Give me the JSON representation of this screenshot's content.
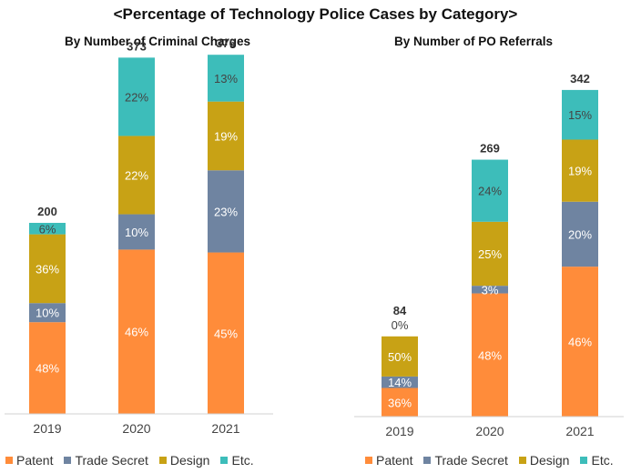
{
  "title": "<Percentage of Technology Police Cases by Category>",
  "colors": {
    "Patent": "#FF8C3A",
    "Trade Secret": "#6F84A1",
    "Design": "#C8A215",
    "Etc.": "#3DBDBA"
  },
  "legend": [
    "Patent",
    "Trade Secret",
    "Design",
    "Etc."
  ],
  "chart_data": [
    {
      "type": "bar",
      "stacked": true,
      "title": "By Number of Criminal Charges",
      "categories": [
        "2019",
        "2020",
        "2021"
      ],
      "totals": [
        200,
        373,
        376
      ],
      "ylim": [
        0,
        400
      ],
      "series": [
        {
          "name": "Patent",
          "values": [
            96,
            172,
            169
          ],
          "labels": [
            "48%",
            "46%",
            "45%"
          ]
        },
        {
          "name": "Trade Secret",
          "values": [
            20,
            37,
            86
          ],
          "labels": [
            "10%",
            "10%",
            "23%"
          ]
        },
        {
          "name": "Design",
          "values": [
            72,
            82,
            72
          ],
          "labels": [
            "36%",
            "22%",
            "19%"
          ]
        },
        {
          "name": "Etc.",
          "values": [
            12,
            82,
            49
          ],
          "labels": [
            "6%",
            "22%",
            "13%"
          ]
        }
      ]
    },
    {
      "type": "bar",
      "stacked": true,
      "title": "By Number of PO Referrals",
      "categories": [
        "2019",
        "2020",
        "2021"
      ],
      "totals": [
        84,
        269,
        342
      ],
      "ylim": [
        0,
        400
      ],
      "series": [
        {
          "name": "Patent",
          "values": [
            30,
            129,
            157
          ],
          "labels": [
            "36%",
            "48%",
            "46%"
          ]
        },
        {
          "name": "Trade Secret",
          "values": [
            12,
            8,
            68
          ],
          "labels": [
            "14%",
            "3%",
            "20%"
          ]
        },
        {
          "name": "Design",
          "values": [
            42,
            67,
            65
          ],
          "labels": [
            "50%",
            "25%",
            "19%"
          ]
        },
        {
          "name": "Etc.",
          "values": [
            0,
            65,
            52
          ],
          "labels": [
            "0%",
            "24%",
            "15%"
          ]
        }
      ]
    }
  ]
}
